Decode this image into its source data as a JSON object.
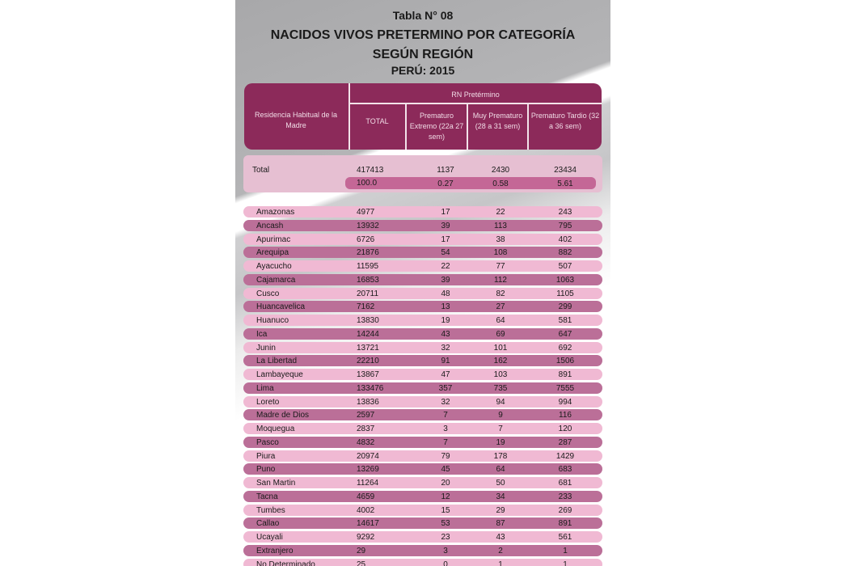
{
  "title": {
    "line1": "Tabla N° 08",
    "line2": "NACIDOS VIVOS PRETERMINO POR CATEGORÍA",
    "line3": "SEGÚN REGIÓN",
    "line4": "PERÚ: 2015"
  },
  "header": {
    "residence": "Residencia Habitual de la Madre",
    "group": "RN Pretérmino",
    "total": "TOTAL",
    "col1": "Prematuro Extremo (22a 27 sem)",
    "col2": "Muy Prematuro (28 a 31 sem)",
    "col3": "Prematuro Tardio (32 a 36 sem)"
  },
  "totals": {
    "label": "Total",
    "values": [
      "417413",
      "1137",
      "2430",
      "23434"
    ],
    "percents": [
      "100.0",
      "0.27",
      "0.58",
      "5.61"
    ]
  },
  "colors": {
    "header": "#8c2a5a",
    "row_light": "#f0b9d3",
    "row_dark": "#bb6f98"
  },
  "rows": [
    {
      "name": "Amazonas",
      "total": "4977",
      "c1": "17",
      "c2": "22",
      "c3": "243"
    },
    {
      "name": "Ancash",
      "total": "13932",
      "c1": "39",
      "c2": "113",
      "c3": "795"
    },
    {
      "name": "Apurimac",
      "total": "6726",
      "c1": "17",
      "c2": "38",
      "c3": "402"
    },
    {
      "name": "Arequipa",
      "total": "21876",
      "c1": "54",
      "c2": "108",
      "c3": "882"
    },
    {
      "name": "Ayacucho",
      "total": "11595",
      "c1": "22",
      "c2": "77",
      "c3": "507"
    },
    {
      "name": "Cajamarca",
      "total": "16853",
      "c1": "39",
      "c2": "112",
      "c3": "1063"
    },
    {
      "name": "Cusco",
      "total": "20711",
      "c1": "48",
      "c2": "82",
      "c3": "1105"
    },
    {
      "name": "Huancavelica",
      "total": "7162",
      "c1": "13",
      "c2": "27",
      "c3": "299"
    },
    {
      "name": "Huanuco",
      "total": "13830",
      "c1": "19",
      "c2": "64",
      "c3": "581"
    },
    {
      "name": "Ica",
      "total": "14244",
      "c1": "43",
      "c2": "69",
      "c3": "647"
    },
    {
      "name": "Junin",
      "total": "13721",
      "c1": "32",
      "c2": "101",
      "c3": "692"
    },
    {
      "name": "La Libertad",
      "total": "22210",
      "c1": "91",
      "c2": "162",
      "c3": "1506"
    },
    {
      "name": "Lambayeque",
      "total": "13867",
      "c1": "47",
      "c2": "103",
      "c3": "891"
    },
    {
      "name": "Lima",
      "total": "133476",
      "c1": "357",
      "c2": "735",
      "c3": "7555"
    },
    {
      "name": "Loreto",
      "total": "13836",
      "c1": "32",
      "c2": "94",
      "c3": "994"
    },
    {
      "name": "Madre de Dios",
      "total": "2597",
      "c1": "7",
      "c2": "9",
      "c3": "116"
    },
    {
      "name": "Moquegua",
      "total": "2837",
      "c1": "3",
      "c2": "7",
      "c3": "120"
    },
    {
      "name": "Pasco",
      "total": "4832",
      "c1": "7",
      "c2": "19",
      "c3": "287"
    },
    {
      "name": "Piura",
      "total": "20974",
      "c1": "79",
      "c2": "178",
      "c3": "1429"
    },
    {
      "name": "Puno",
      "total": "13269",
      "c1": "45",
      "c2": "64",
      "c3": "683"
    },
    {
      "name": "San Martin",
      "total": "11264",
      "c1": "20",
      "c2": "50",
      "c3": "681"
    },
    {
      "name": "Tacna",
      "total": "4659",
      "c1": "12",
      "c2": "34",
      "c3": "233"
    },
    {
      "name": "Tumbes",
      "total": "4002",
      "c1": "15",
      "c2": "29",
      "c3": "269"
    },
    {
      "name": "Callao",
      "total": "14617",
      "c1": "53",
      "c2": "87",
      "c3": "891"
    },
    {
      "name": "Ucayali",
      "total": "9292",
      "c1": "23",
      "c2": "43",
      "c3": "561"
    },
    {
      "name": "Extranjero",
      "total": "29",
      "c1": "3",
      "c2": "2",
      "c3": "1"
    },
    {
      "name": "No Determinado",
      "total": "25",
      "c1": "0",
      "c2": "1",
      "c3": "1"
    }
  ]
}
